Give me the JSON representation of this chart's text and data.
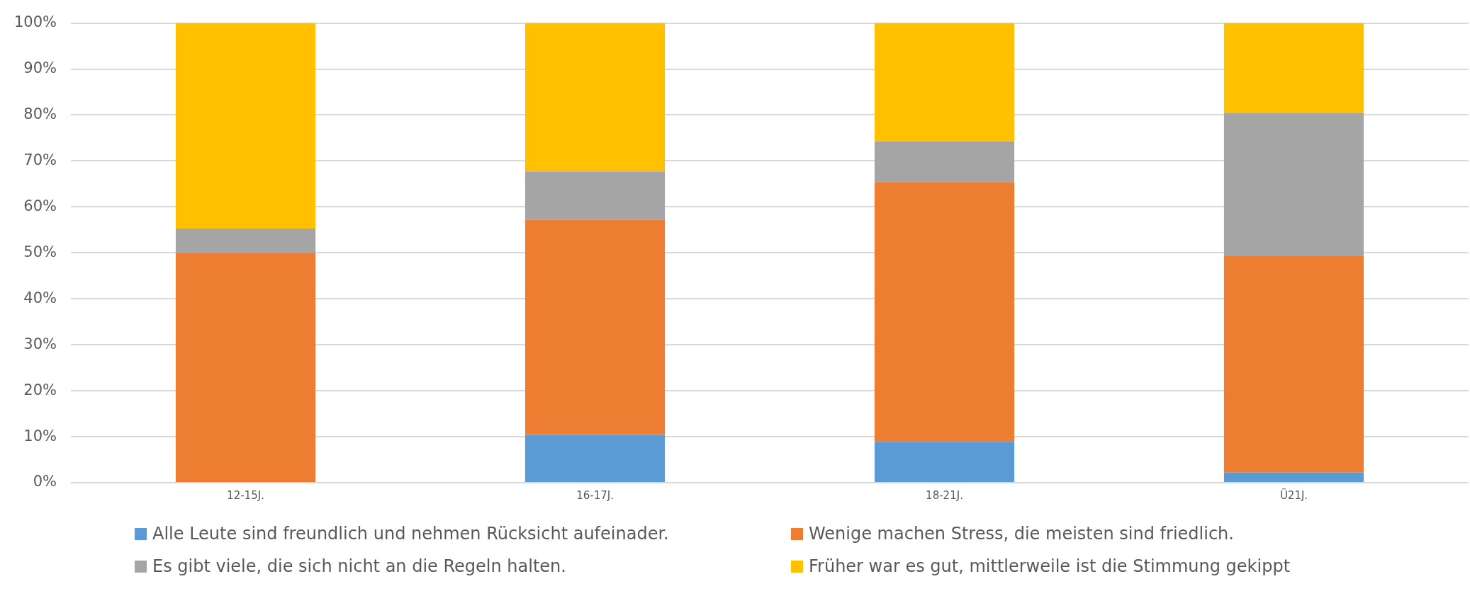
{
  "chart_data": {
    "type": "bar",
    "stacked": true,
    "categories": [
      "12-15J.",
      "16-17J.",
      "18-21J.",
      "Ü21J."
    ],
    "series": [
      {
        "name": "Alle Leute sind freundlich und nehmen Rücksicht aufeinader.",
        "color": "#5b9bd5",
        "values": [
          0,
          10.4,
          8.9,
          2.2
        ]
      },
      {
        "name": "Wenige machen Stress, die meisten sind friedlich.",
        "color": "#ed7d31",
        "values": [
          50.0,
          46.8,
          56.5,
          47.2
        ]
      },
      {
        "name": "Es gibt viele, die sich nicht an die Regeln halten.",
        "color": "#a5a5a5",
        "values": [
          5.3,
          10.5,
          8.9,
          31.0
        ]
      },
      {
        "name": "Früher war es gut, mittlerweile ist die Stimmung gekippt",
        "color": "#ffc000",
        "values": [
          44.7,
          32.3,
          25.7,
          19.6
        ]
      }
    ],
    "ylim": [
      0,
      100
    ],
    "yticks": [
      {
        "value": 0,
        "label": "0%"
      },
      {
        "value": 10,
        "label": "10%"
      },
      {
        "value": 20,
        "label": "20%"
      },
      {
        "value": 30,
        "label": "30%"
      },
      {
        "value": 40,
        "label": "40%"
      },
      {
        "value": 50,
        "label": "50%"
      },
      {
        "value": 60,
        "label": "60%"
      },
      {
        "value": 70,
        "label": "70%"
      },
      {
        "value": 80,
        "label": "80%"
      },
      {
        "value": 90,
        "label": "90%"
      },
      {
        "value": 100,
        "label": "100%"
      }
    ],
    "grid": "y",
    "legend": "bottom"
  }
}
